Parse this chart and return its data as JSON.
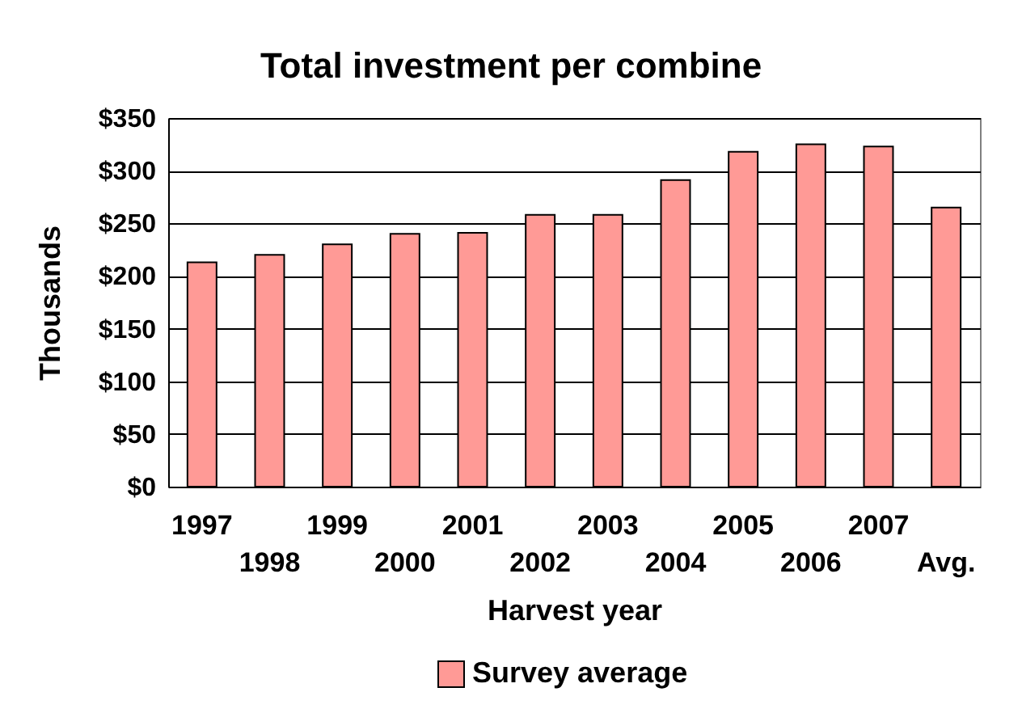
{
  "chart_data": {
    "type": "bar",
    "title": "Total investment per combine",
    "xlabel": "Harvest year",
    "ylabel": "Thousands",
    "categories": [
      "1997",
      "1998",
      "1999",
      "2000",
      "2001",
      "2002",
      "2003",
      "2004",
      "2005",
      "2006",
      "2007",
      "Avg."
    ],
    "series": [
      {
        "name": "Survey average",
        "color": "#ff9a96",
        "values": [
          213,
          220,
          230,
          240,
          241,
          258,
          258,
          291,
          318,
          325,
          323,
          265
        ]
      }
    ],
    "ylim": [
      0,
      350
    ],
    "yticks": [
      {
        "value": 0,
        "label": "$0"
      },
      {
        "value": 50,
        "label": "$50"
      },
      {
        "value": 100,
        "label": "$100"
      },
      {
        "value": 150,
        "label": "$150"
      },
      {
        "value": 200,
        "label": "$200"
      },
      {
        "value": 250,
        "label": "$250"
      },
      {
        "value": 300,
        "label": "$300"
      },
      {
        "value": 350,
        "label": "$350"
      }
    ],
    "grid": "y",
    "legend": "bottom"
  }
}
